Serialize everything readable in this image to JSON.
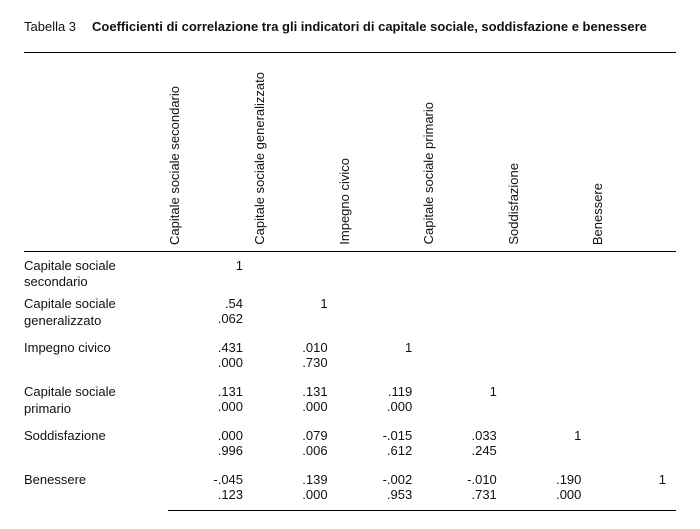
{
  "table_label": "Tabella 3",
  "title": "Coefficienti di correlazione tra gli indicatori di capitale sociale, soddisfazione e benessere",
  "columns": [
    "Capitale\nsociale\nsecondario",
    "Capitale\nsociale\ngeneralizzato",
    "Impegno\ncivico",
    "Capitale\nsociale\nprimario",
    "Soddisfazione",
    "Benessere"
  ],
  "rows": [
    {
      "label": "Capitale sociale secondario",
      "v": [
        "1",
        "",
        "",
        "",
        "",
        ""
      ],
      "p": [
        "",
        "",
        "",
        "",
        "",
        ""
      ]
    },
    {
      "label": "Capitale sociale generalizzato",
      "v": [
        ".54",
        "1",
        "",
        "",
        "",
        ""
      ],
      "p": [
        ".062",
        "",
        "",
        "",
        "",
        ""
      ]
    },
    {
      "label": "Impegno civico",
      "v": [
        ".431",
        ".010",
        "1",
        "",
        "",
        ""
      ],
      "p": [
        ".000",
        ".730",
        "",
        "",
        "",
        ""
      ]
    },
    {
      "label": "Capitale sociale primario",
      "v": [
        ".131",
        ".131",
        ".119",
        "1",
        "",
        ""
      ],
      "p": [
        ".000",
        ".000",
        ".000",
        "",
        "",
        ""
      ]
    },
    {
      "label": "Soddisfazione",
      "v": [
        ".000",
        ".079",
        "-.015",
        ".033",
        "1",
        ""
      ],
      "p": [
        ".996",
        ".006",
        ".612",
        ".245",
        "",
        ""
      ]
    },
    {
      "label": "Benessere",
      "v": [
        "-.045",
        ".139",
        "-.002",
        "-.010",
        ".190",
        "1"
      ],
      "p": [
        ".123",
        ".000",
        ".953",
        ".731",
        ".000",
        ""
      ]
    }
  ]
}
